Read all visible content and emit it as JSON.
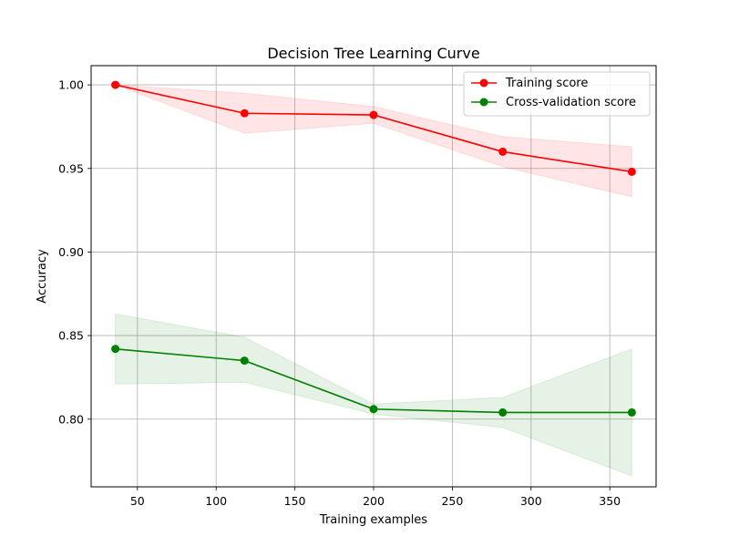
{
  "chart_data": {
    "type": "line",
    "title": "Decision Tree Learning Curve",
    "xlabel": "Training examples",
    "ylabel": "Accuracy",
    "x": [
      36,
      118,
      200,
      282,
      364
    ],
    "xlim": [
      20.6,
      379.4
    ],
    "ylim": [
      0.7595,
      1.0115
    ],
    "xticks": [
      50,
      100,
      150,
      200,
      250,
      300,
      350
    ],
    "yticks": [
      0.8,
      0.85,
      0.9,
      0.95,
      1.0
    ],
    "xtick_labels": [
      "50",
      "100",
      "150",
      "200",
      "250",
      "300",
      "350"
    ],
    "ytick_labels": [
      "0.80",
      "0.85",
      "0.90",
      "0.95",
      "1.00"
    ],
    "grid": true,
    "legend_position": "top-right",
    "series": [
      {
        "name": "Training score",
        "color": "#ff0000",
        "marker": "circle",
        "values": [
          1.0,
          0.983,
          0.982,
          0.96,
          0.948
        ],
        "band_lower": [
          1.0,
          0.971,
          0.977,
          0.951,
          0.933
        ],
        "band_upper": [
          1.0,
          0.995,
          0.987,
          0.969,
          0.963
        ]
      },
      {
        "name": "Cross-validation score",
        "color": "#008000",
        "marker": "circle",
        "values": [
          0.842,
          0.835,
          0.806,
          0.804,
          0.804
        ],
        "band_lower": [
          0.821,
          0.822,
          0.803,
          0.795,
          0.766
        ],
        "band_upper": [
          0.863,
          0.849,
          0.809,
          0.813,
          0.842
        ]
      }
    ]
  }
}
